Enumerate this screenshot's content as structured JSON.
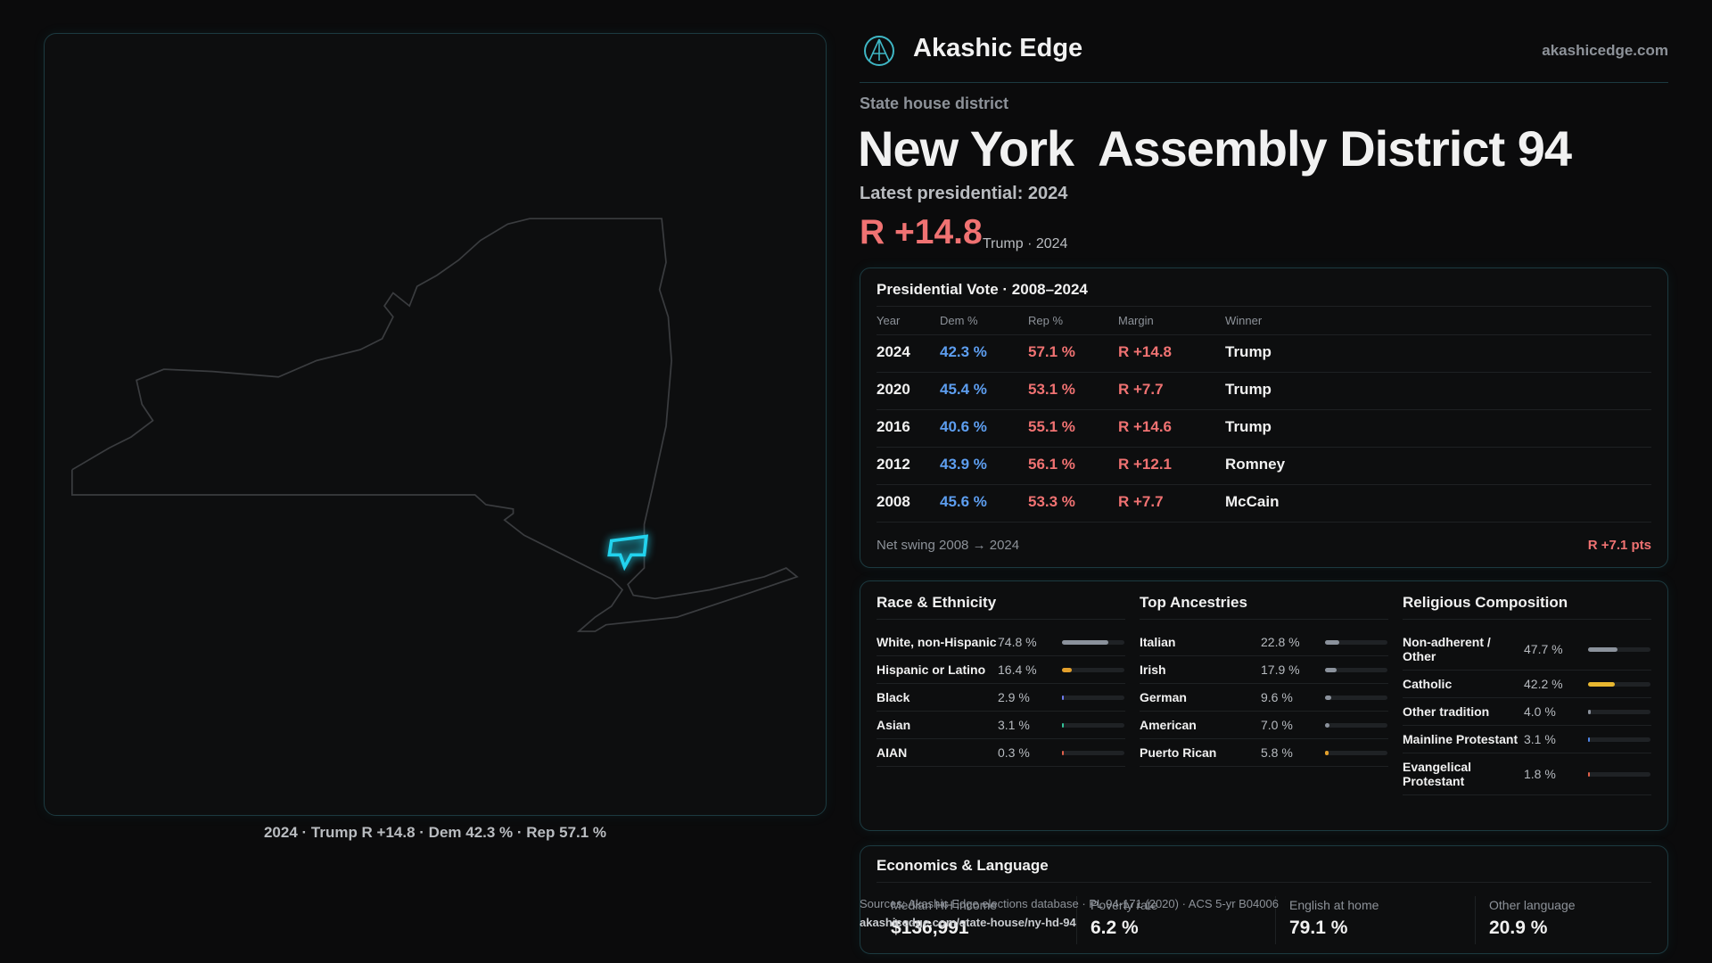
{
  "header": {
    "brand": "Akashic Edge",
    "site": "akashicedge.com"
  },
  "district": {
    "kind": "State house district",
    "name": "New York  Assembly District 94",
    "latest_label": "Latest presidential: 2024",
    "margin": "R +14.8",
    "margin_note": "Trump · 2024"
  },
  "map": {
    "caption": "2024 · Trump R +14.8 · Dem 42.3 % · Rep 57.1 %"
  },
  "presidential": {
    "title": "Presidential Vote · 2008–2024",
    "columns": [
      "Year",
      "Dem %",
      "Rep %",
      "Margin",
      "Winner"
    ],
    "rows": [
      [
        "2024",
        "42.3 %",
        "57.1 %",
        "R +14.8",
        "Trump"
      ],
      [
        "2020",
        "45.4 %",
        "53.1 %",
        "R +7.7",
        "Trump"
      ],
      [
        "2016",
        "40.6 %",
        "55.1 %",
        "R +14.6",
        "Trump"
      ],
      [
        "2012",
        "43.9 %",
        "56.1 %",
        "R +12.1",
        "Romney"
      ],
      [
        "2008",
        "45.6 %",
        "53.3 %",
        "R +7.7",
        "McCain"
      ]
    ],
    "swing_label": "Net swing 2008 → 2024",
    "swing": "R +7.1 pts"
  },
  "demographics": [
    {
      "title": "Race & Ethnicity",
      "rows": [
        {
          "label": "White, non-Hispanic",
          "value": 74.8,
          "value_label": "74.8 %",
          "color": "#8b929c"
        },
        {
          "label": "Hispanic or Latino",
          "value": 16.4,
          "value_label": "16.4 %",
          "color": "#e3a02c"
        },
        {
          "label": "Black",
          "value": 2.9,
          "value_label": "2.9 %",
          "color": "#6f7cf0"
        },
        {
          "label": "Asian",
          "value": 3.1,
          "value_label": "3.1 %",
          "color": "#34c49a"
        },
        {
          "label": "AIAN",
          "value": 0.3,
          "value_label": "0.3 %",
          "color": "#e0604a"
        }
      ]
    },
    {
      "title": "Top Ancestries",
      "rows": [
        {
          "label": "Italian",
          "value": 22.8,
          "value_label": "22.8 %",
          "color": "#8b929c"
        },
        {
          "label": "Irish",
          "value": 17.9,
          "value_label": "17.9 %",
          "color": "#8b929c"
        },
        {
          "label": "German",
          "value": 9.6,
          "value_label": "9.6 %",
          "color": "#8b929c"
        },
        {
          "label": "American",
          "value": 7.0,
          "value_label": "7.0 %",
          "color": "#8b929c"
        },
        {
          "label": "Puerto Rican",
          "value": 5.8,
          "value_label": "5.8 %",
          "color": "#e3a02c"
        }
      ]
    },
    {
      "title": "Religious Composition",
      "rows": [
        {
          "label": "Non-adherent / Other",
          "value": 47.7,
          "value_label": "47.7 %",
          "color": "#8b929c"
        },
        {
          "label": "Catholic",
          "value": 42.2,
          "value_label": "42.2 %",
          "color": "#e8b730"
        },
        {
          "label": "Other tradition",
          "value": 4.0,
          "value_label": "4.0 %",
          "color": "#8b929c"
        },
        {
          "label": "Mainline Protestant",
          "value": 3.1,
          "value_label": "3.1 %",
          "color": "#4f86e8"
        },
        {
          "label": "Evangelical Protestant",
          "value": 1.8,
          "value_label": "1.8 %",
          "color": "#e0604a"
        }
      ]
    }
  ],
  "economics": {
    "title": "Economics & Language",
    "items": [
      {
        "label": "Median HH income",
        "value": "$136,991"
      },
      {
        "label": "Poverty rate",
        "value": "6.2 %"
      },
      {
        "label": "English at home",
        "value": "79.1 %"
      },
      {
        "label": "Other language",
        "value": "20.9 %"
      }
    ]
  },
  "footer": {
    "sources": "Sources: Akashic Edge elections database · PL 94-171 (2020) · ACS 5-yr B04006",
    "url": "akashicedge.com/state-house/ny-hd-94"
  }
}
